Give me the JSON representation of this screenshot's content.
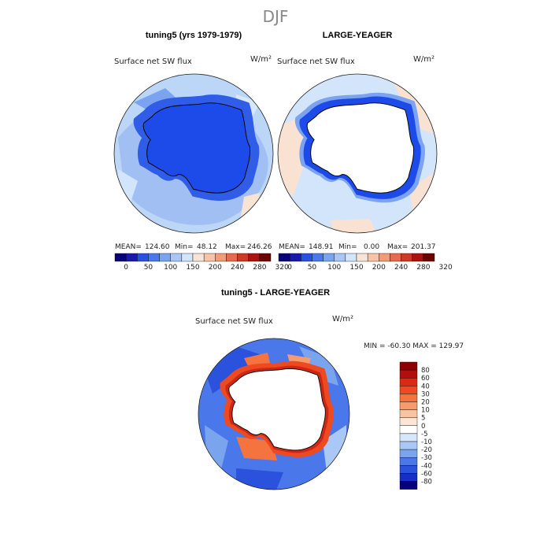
{
  "figure_title": "DJF",
  "chart_data": [
    {
      "type": "map",
      "projection": "south-polar-stereographic",
      "title": "tuning5 (yrs 1979-1979)",
      "variable": "Surface net SW flux",
      "units": "W/m²",
      "stats": {
        "mean": "124.60",
        "min": "48.12",
        "max": "246.26"
      },
      "stats_labels": {
        "mean": "MEAN=",
        "min": "Min=",
        "max": "Max="
      },
      "colorbar": {
        "levels": [
          "0",
          "50",
          "100",
          "150",
          "200",
          "240",
          "280",
          "320"
        ],
        "colors": [
          "#08007a",
          "#1a1aa8",
          "#2b4fe0",
          "#4a78ea",
          "#7ba3f0",
          "#a9c6f5",
          "#d3e5fb",
          "#f7e4d5",
          "#f8c4a9",
          "#f39a7a",
          "#e7694e",
          "#cc3a26",
          "#a8140f",
          "#6e0000"
        ]
      },
      "regions": {
        "ocean": "#bcd6f7",
        "ice_sheet": "#1d4bea",
        "coastal_band": "#2f5de8"
      }
    },
    {
      "type": "map",
      "projection": "south-polar-stereographic",
      "title": "LARGE-YEAGER",
      "variable": "Surface net SW flux",
      "units": "W/m²",
      "stats": {
        "mean": "148.91",
        "min": "0.00",
        "max": "201.37"
      },
      "stats_labels": {
        "mean": "MEAN=",
        "min": "Min=",
        "max": "Max="
      },
      "colorbar": {
        "levels": [
          "0",
          "50",
          "100",
          "150",
          "200",
          "240",
          "280",
          "320"
        ],
        "colors": [
          "#08007a",
          "#1a1aa8",
          "#2b4fe0",
          "#4a78ea",
          "#7ba3f0",
          "#a9c6f5",
          "#d3e5fb",
          "#f7e4d5",
          "#f8c4a9",
          "#f39a7a",
          "#e7694e",
          "#cc3a26",
          "#a8140f",
          "#6e0000"
        ]
      },
      "regions": {
        "ocean": "#d3e5fb",
        "ice_sheet": "#ffffff",
        "coastal_band": "#1d4bea",
        "warm_patches": "#f9e2d2"
      }
    },
    {
      "type": "map",
      "projection": "south-polar-stereographic",
      "title": "tuning5 - LARGE-YEAGER",
      "variable": "Surface net SW flux",
      "units": "W/m²",
      "stats_text": "MIN = -60.30 MAX = 129.97",
      "colorbar": {
        "levels": [
          "80",
          "60",
          "40",
          "30",
          "20",
          "10",
          "5",
          "0",
          "-5",
          "-10",
          "-20",
          "-30",
          "-40",
          "-60",
          "-80"
        ],
        "colors": [
          "#8e0000",
          "#b30d0d",
          "#d82a14",
          "#ee4a22",
          "#f4733f",
          "#f79b6c",
          "#fac4a0",
          "#fbe6d5",
          "#ffffff",
          "#d6e6fb",
          "#a9c8f5",
          "#7aa4ee",
          "#4a78ea",
          "#2a52dd",
          "#142fc4",
          "#08007a"
        ]
      },
      "regions": {
        "ocean": "#4a78ea",
        "ice_sheet": "#ffffff",
        "coastal_ring": "#ee4a22"
      }
    }
  ]
}
